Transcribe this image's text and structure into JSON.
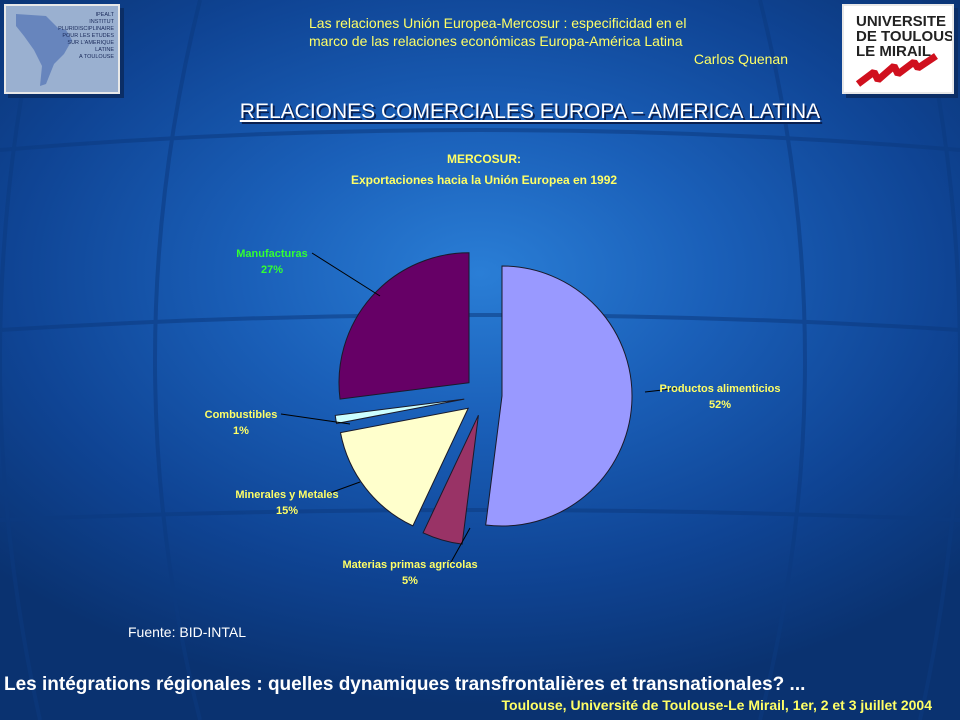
{
  "header": {
    "line1": "Las relaciones Unión Europea-Mercosur : especificidad en el",
    "line2": "marco de las relaciones económicas Europa-América Latina",
    "author": "Carlos Quenan"
  },
  "logos": {
    "left_lines": [
      "IPEALT",
      "INSTITUT",
      "PLURIDISCIPLINAIRE",
      "POUR LES ETUDES",
      "SUR L'AMERIQUE",
      "LATINE",
      "A TOULOUSE"
    ],
    "right_lines": [
      "UNIVERSITE",
      "DE TOULOUSE",
      "LE MIRAIL"
    ]
  },
  "slide_title": "RELACIONES COMERCIALES EUROPA – AMERICA LATINA",
  "chart_data": {
    "type": "pie",
    "title": "MERCOSUR:",
    "subtitle": "Exportaciones hacia la Unión Europea en 1992",
    "slices": [
      {
        "label": "Productos alimenticios",
        "value": 52,
        "pct_label": "52%",
        "color": "#9999ff",
        "exploded": false
      },
      {
        "label": "Materias primas agrícolas",
        "value": 5,
        "pct_label": "5%",
        "color": "#993366",
        "exploded": true
      },
      {
        "label": "Minerales y Metales",
        "value": 15,
        "pct_label": "15%",
        "color": "#ffffcc",
        "exploded": true
      },
      {
        "label": "Combustibles",
        "value": 1,
        "pct_label": "1%",
        "color": "#ccffff",
        "exploded": true
      },
      {
        "label": "Manufacturas",
        "value": 27,
        "pct_label": "27%",
        "color": "#660066",
        "exploded": true
      }
    ]
  },
  "source": "Fuente: BID-INTAL",
  "footer": {
    "main": "Les intégrations régionales : quelles dynamiques transfrontalières et transnationales? ...",
    "sub": "Toulouse, Université de Toulouse-Le Mirail, 1er, 2 et 3 juillet 2004"
  },
  "colors": {
    "header_text": "#ffff66",
    "chart_title": "#ffff66",
    "highlight_label": "#33ff33",
    "label_text": "#ffff66"
  }
}
